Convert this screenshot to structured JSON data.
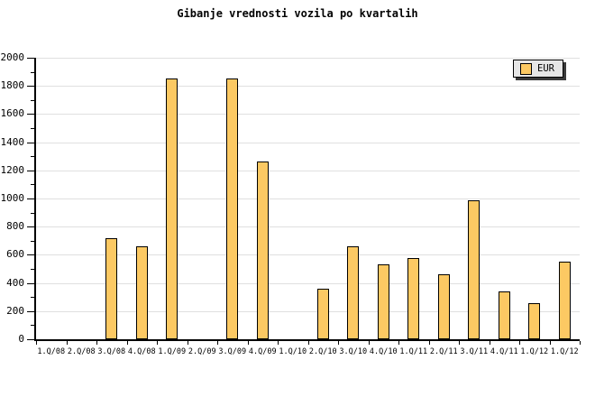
{
  "chart_data": {
    "type": "bar",
    "title": "Gibanje vrednosti vozila po kvartalih",
    "categories": [
      "1.Q/08",
      "2.Q/08",
      "3.Q/08",
      "4.Q/08",
      "1.Q/09",
      "2.Q/09",
      "3.Q/09",
      "4.Q/09",
      "1.Q/10",
      "2.Q/10",
      "3.Q/10",
      "4.Q/10",
      "1.Q/11",
      "2.Q/11",
      "3.Q/11",
      "4.Q/11",
      "1.Q/12",
      "1.Q/12"
    ],
    "series": [
      {
        "name": "EUR",
        "values": [
          0,
          0,
          720,
          660,
          1850,
          0,
          1850,
          1260,
          0,
          360,
          660,
          530,
          575,
          460,
          990,
          340,
          255,
          550
        ]
      }
    ],
    "xlabel": "",
    "ylabel": "",
    "ylim": [
      0,
      2000
    ],
    "ytick_major": 200,
    "ytick_minor": 100,
    "yticks": [
      0,
      200,
      400,
      600,
      800,
      1000,
      1200,
      1400,
      1600,
      1800,
      2000
    ],
    "grid": "horizontal-major",
    "legend": {
      "label": "EUR",
      "position": "top-right"
    },
    "colors": {
      "bar_fill": "#FCC963",
      "bar_border": "#000000",
      "grid": "#E0E0E0",
      "axis": "#000000",
      "text": "#000000",
      "legend_bg": "#E6E6E6",
      "legend_shadow": "#3A3A3A",
      "background": "#FFFFFF"
    }
  }
}
